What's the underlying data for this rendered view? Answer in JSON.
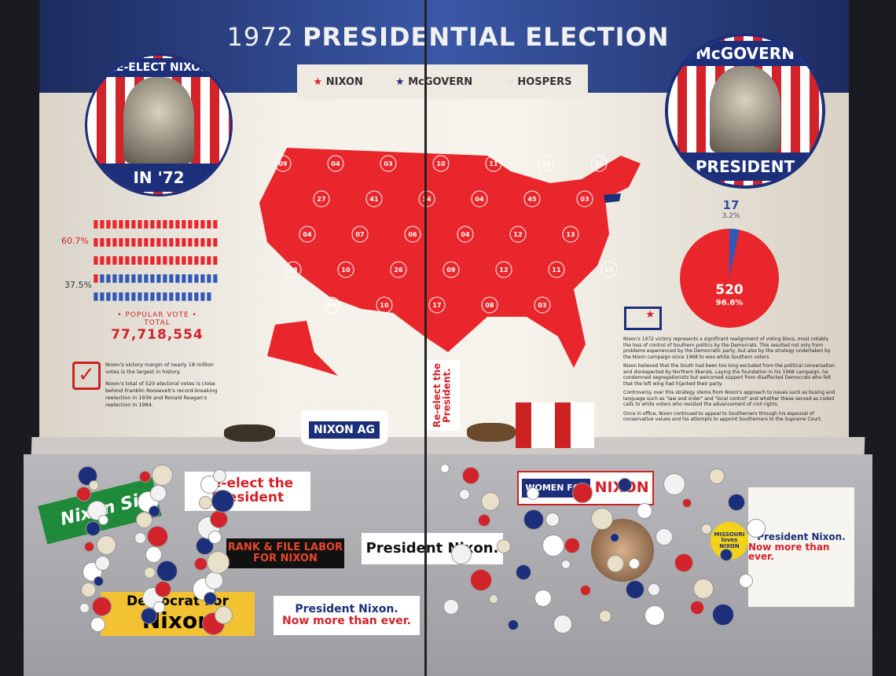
{
  "header": {
    "title_year": "1972",
    "title_main": "PRESIDENTIAL ELECTION"
  },
  "legend": [
    {
      "label": "NIXON",
      "color": "#d2232a"
    },
    {
      "label": "McGOVERN",
      "color": "#1c2f7a"
    },
    {
      "label": "HOSPERS",
      "color": "#cccccc"
    }
  ],
  "nixon_button": {
    "top": "RE-ELECT NIXON",
    "bottom": "IN '72"
  },
  "mcgovern_button": {
    "top": "McGOVERN",
    "bottom": "PRESIDENT"
  },
  "popular_vote": {
    "nixon_pct": "60.7%",
    "mcgovern_pct": "37.5%",
    "nixon_share": 60.7,
    "mcgovern_share": 37.5,
    "label": "• POPULAR VOTE •",
    "total_label": "TOTAL",
    "total": "77,718,554"
  },
  "facts": [
    "Nixon's victory margin of nearly 18 million votes is the largest in history.",
    "Nixon's total of 520 electoral votes is close behind Franklin Roosevelt's record-breaking reelection in 1936 and Ronald Reagan's reelection in 1984."
  ],
  "electoral": {
    "mcgovern_votes": "17",
    "mcgovern_pct": "3.2%",
    "nixon_votes": "520",
    "nixon_pct": "96.6%",
    "mcgovern_share": 3.2,
    "colors": {
      "nixon": "#e8262b",
      "mcgovern": "#2f58b8"
    }
  },
  "map_labels": [
    "09",
    "04",
    "03",
    "10",
    "11",
    "21",
    "25",
    "27",
    "41",
    "14",
    "04",
    "45",
    "03",
    "04",
    "07",
    "06",
    "04",
    "12",
    "13",
    "08",
    "10",
    "26",
    "09",
    "12",
    "11",
    "07",
    "09",
    "10",
    "17",
    "08",
    "03"
  ],
  "essay": [
    "Nixon's 1972 victory represents a significant realignment of voting blocs, most notably the loss of control of Southern politics by the Democrats. This resulted not only from problems experienced by the Democratic party, but also by the strategy undertaken by the Nixon campaign since 1968 to woo white Southern voters.",
    "Nixon believed that the South had been too long excluded from the political conversation and disrespected by Northern liberals. Laying the foundation in his 1968 campaign, he condemned segregationists but welcomed support from disaffected Democrats who felt that the left wing had hijacked their party.",
    "Controversy over this strategy stems from Nixon's approach to issues such as busing and language such as \"law and order\" and \"local control\" and whether these served as coded calls to white voters who resisted the advancement of civil rights.",
    "Once in office, Nixon continued to appeal to Southerners through his espousal of conservative values and his attempts to appoint Southerners to the Supreme Court."
  ],
  "artifacts": {
    "hat": "NIXON AG",
    "sticker": "Re-elect the President.",
    "reelect": "Re-elect the President",
    "women": "WOMEN FOR",
    "women_nixon": "NIXON",
    "nixon_si": "Nixon Si",
    "labor": "RANK & FILE LABOR FOR NIXON",
    "president_nixon": "President Nixon.",
    "democrat": "Democrat For",
    "democrat_nixon": "Nixon",
    "now_more": "President Nixon.",
    "now_more_2": "Now more than ever.",
    "missouri": "MISSOURI loves NIXON",
    "bag_1": "President Nixon.",
    "bag_2": "Now more than ever."
  }
}
